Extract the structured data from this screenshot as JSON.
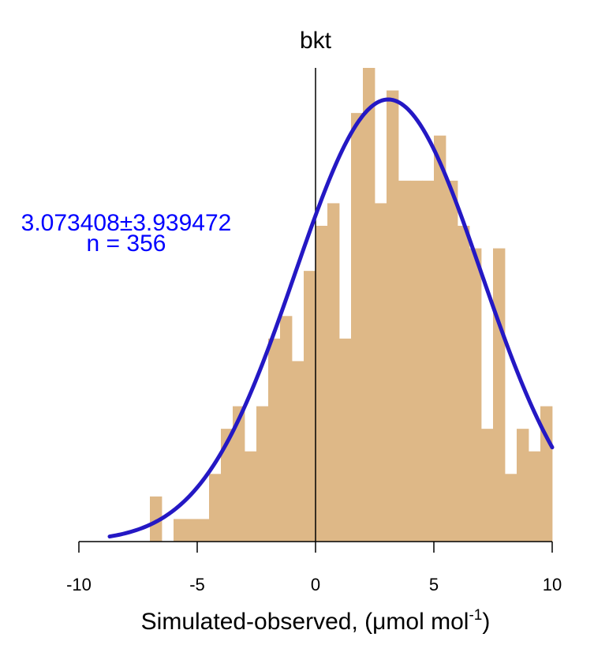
{
  "chart_data": {
    "type": "bar",
    "title": "bkt",
    "xlabel_main": "Simulated-observed, (μmol mol",
    "xlabel_sup": "-1",
    "xlabel_close": ")",
    "ylabel": "",
    "xlim": [
      -10,
      10
    ],
    "x_ticks": [
      -10,
      -5,
      0,
      5,
      10
    ],
    "bin_width": 0.5,
    "ylim": [
      0,
      21
    ],
    "vline_x": 0,
    "bins": [
      {
        "x0": -7.0,
        "count": 2
      },
      {
        "x0": -6.5,
        "count": 0
      },
      {
        "x0": -6.0,
        "count": 1
      },
      {
        "x0": -5.5,
        "count": 1
      },
      {
        "x0": -5.0,
        "count": 1
      },
      {
        "x0": -4.5,
        "count": 3
      },
      {
        "x0": -4.0,
        "count": 5
      },
      {
        "x0": -3.5,
        "count": 6
      },
      {
        "x0": -3.0,
        "count": 4
      },
      {
        "x0": -2.5,
        "count": 6
      },
      {
        "x0": -2.0,
        "count": 9
      },
      {
        "x0": -1.5,
        "count": 10
      },
      {
        "x0": -1.0,
        "count": 8
      },
      {
        "x0": -0.5,
        "count": 12
      },
      {
        "x0": 0.0,
        "count": 14
      },
      {
        "x0": 0.5,
        "count": 15
      },
      {
        "x0": 1.0,
        "count": 9
      },
      {
        "x0": 1.5,
        "count": 19
      },
      {
        "x0": 2.0,
        "count": 21
      },
      {
        "x0": 2.5,
        "count": 15
      },
      {
        "x0": 3.0,
        "count": 20
      },
      {
        "x0": 3.5,
        "count": 16
      },
      {
        "x0": 4.0,
        "count": 16
      },
      {
        "x0": 4.5,
        "count": 16
      },
      {
        "x0": 5.0,
        "count": 18
      },
      {
        "x0": 5.5,
        "count": 16
      },
      {
        "x0": 6.0,
        "count": 14
      },
      {
        "x0": 6.5,
        "count": 13
      },
      {
        "x0": 7.0,
        "count": 5
      },
      {
        "x0": 7.5,
        "count": 13
      },
      {
        "x0": 8.0,
        "count": 3
      },
      {
        "x0": 8.5,
        "count": 5
      },
      {
        "x0": 9.0,
        "count": 4
      },
      {
        "x0": 9.5,
        "count": 6
      }
    ],
    "fit_curve": {
      "type": "normal",
      "mean": 3.073408,
      "sd": 3.939472,
      "peak_count": 19.6,
      "x_range": [
        -8.7,
        10
      ]
    },
    "annotation": {
      "stats": "3.073408±3.939472",
      "n": "n = 356"
    },
    "colors": {
      "bars": "#deb887",
      "curve": "#2418c4",
      "annotation": "#0000ff",
      "axis": "#000000"
    }
  }
}
